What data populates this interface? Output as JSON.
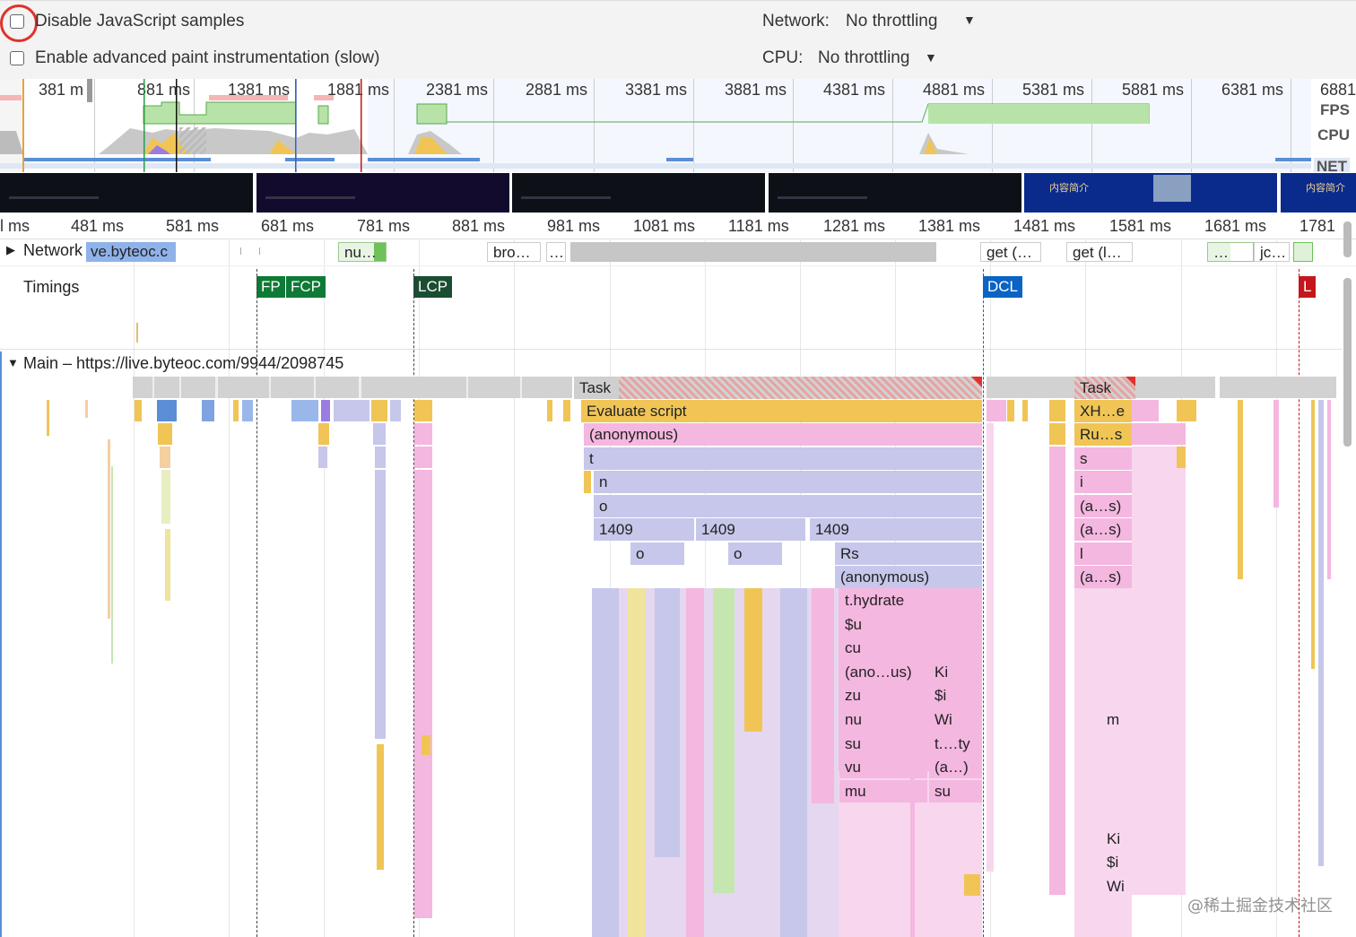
{
  "settings": {
    "disable_js_samples": "Disable JavaScript samples",
    "advanced_paint": "Enable advanced paint instrumentation (slow)",
    "network_label": "Network:",
    "network_value": "No throttling",
    "cpu_label": "CPU:",
    "cpu_value": "No throttling"
  },
  "overview": {
    "ticks": [
      "381 m",
      "881 ms",
      "1381 ms",
      "1881 ms",
      "2381 ms",
      "2881 ms",
      "3381 ms",
      "3881 ms",
      "4381 ms",
      "4881 ms",
      "5381 ms",
      "5881 ms",
      "6381 ms",
      "6881"
    ],
    "tracks": [
      "FPS",
      "CPU",
      "NET"
    ]
  },
  "filmstrip": {
    "frame_text": "内容简介"
  },
  "ruler": {
    "ticks": [
      "l ms",
      "481 ms",
      "581 ms",
      "681 ms",
      "781 ms",
      "881 ms",
      "981 ms",
      "1081 ms",
      "1181 ms",
      "1281 ms",
      "1381 ms",
      "1481 ms",
      "1581 ms",
      "1681 ms",
      "1781"
    ]
  },
  "network": {
    "label": "Network",
    "bars": [
      "ve.byteoc.c",
      "nu…",
      "bro…",
      "…",
      "get (…",
      "get (l…",
      "…",
      "jc…"
    ]
  },
  "timings": {
    "label": "Timings",
    "markers": [
      "FP",
      "FCP",
      "LCP",
      "DCL",
      "L"
    ]
  },
  "main": {
    "label": "Main – https://live.byteoc.com/9944/2098745",
    "flame_left": [
      "Task",
      "Evaluate script",
      "(anonymous)",
      "t",
      "n",
      "o",
      "1409",
      "1409",
      "1409",
      "o",
      "o",
      "Rs",
      "(anonymous)",
      "t.hydrate",
      "$u",
      "cu",
      "(ano…us)",
      "Ki",
      "zu",
      "$i",
      "nu",
      "Wi",
      "su",
      "t.…ty",
      "vu",
      "(a…)",
      "mu",
      "su"
    ],
    "flame_right": [
      "Task",
      "XH…e",
      "Ru…s",
      "s",
      "i",
      "(a…s)",
      "(a…s)",
      "l",
      "(a…s)",
      "m",
      "Ki",
      "$i",
      "Wi"
    ]
  },
  "watermark": "@稀土掘金技术社区",
  "colors": {
    "task_gray": "#c8c8c8",
    "script_yellow": "#f0c556",
    "pink": "#f4b7e0",
    "lavender": "#c6c7ea",
    "fp_green": "#0d7a36",
    "lcp_dark": "#1b4d32",
    "dcl_blue": "#0b63c4",
    "load_red": "#c4161c",
    "fps_green": "#b7e3a8",
    "net_blue": "#5b8ed6",
    "highlight_circle": "#e0322a"
  }
}
